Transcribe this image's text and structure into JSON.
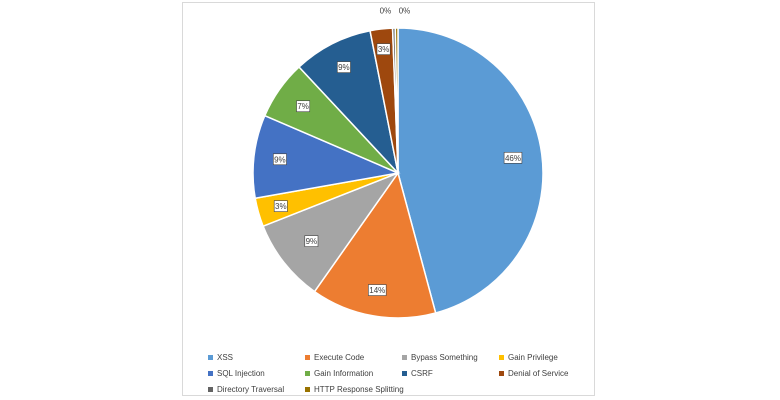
{
  "chart_data": {
    "type": "pie",
    "title": "",
    "legend_position": "bottom",
    "categories": [
      "XSS",
      "Execute Code",
      "Bypass Something",
      "Gain Privilege",
      "SQL Injection",
      "Gain Information",
      "CSRF",
      "Denial of Service",
      "Directory Traversal",
      "HTTP Response Splitting"
    ],
    "values": [
      46,
      14,
      9,
      3,
      9,
      7,
      9,
      3,
      0,
      0
    ],
    "slice_fractions": [
      0.46,
      0.14,
      0.093,
      0.032,
      0.093,
      0.066,
      0.089,
      0.025,
      0.003,
      0.003
    ],
    "data_labels": [
      "46%",
      "14%",
      "9%",
      "3%",
      "9%",
      "7%",
      "9%",
      "3%",
      "0%",
      "0%"
    ],
    "colors": [
      "#5b9bd5",
      "#ed7d31",
      "#a5a5a5",
      "#ffc000",
      "#4472c4",
      "#70ad47",
      "#255e91",
      "#9e480e",
      "#636363",
      "#997300"
    ]
  }
}
